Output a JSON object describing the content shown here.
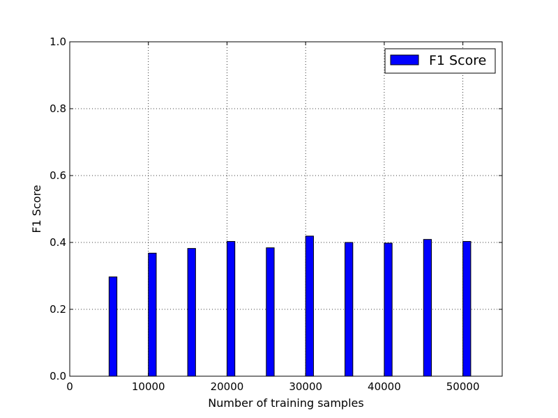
{
  "chart_data": {
    "type": "bar",
    "title": "",
    "xlabel": "Number of training samples",
    "ylabel": "F1 Score",
    "x": [
      5500,
      10500,
      15500,
      20500,
      25500,
      30500,
      35500,
      40500,
      45500,
      50500
    ],
    "series": [
      {
        "name": "F1 Score",
        "color": "#0000ff",
        "values": [
          0.297,
          0.368,
          0.382,
          0.403,
          0.384,
          0.419,
          0.4,
          0.398,
          0.409,
          0.403
        ]
      }
    ],
    "xlim": [
      0,
      55000
    ],
    "ylim": [
      0.0,
      1.0
    ],
    "xticks": [
      0,
      10000,
      20000,
      30000,
      40000,
      50000
    ],
    "xtick_labels": [
      "0",
      "10000",
      "20000",
      "30000",
      "40000",
      "50000"
    ],
    "yticks": [
      0.0,
      0.2,
      0.4,
      0.6,
      0.8,
      1.0
    ],
    "ytick_labels": [
      "0.0",
      "0.2",
      "0.4",
      "0.6",
      "0.8",
      "1.0"
    ],
    "bar_width": 1000,
    "grid": true,
    "legend_position": "top-right"
  }
}
